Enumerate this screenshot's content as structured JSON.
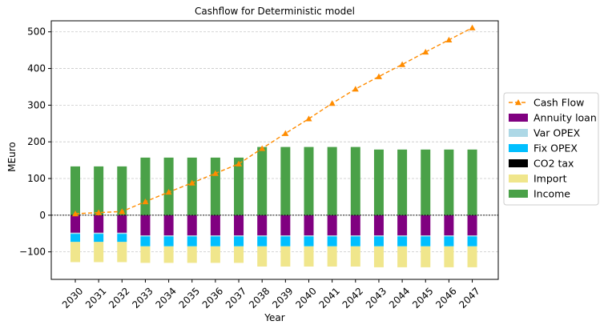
{
  "chart_data": {
    "type": "bar",
    "title": "Cashflow for Deterministic model",
    "xlabel": "Year",
    "ylabel": "MEuro",
    "categories": [
      "2030",
      "2031",
      "2032",
      "2033",
      "2034",
      "2035",
      "2036",
      "2037",
      "2038",
      "2039",
      "2040",
      "2041",
      "2042",
      "2043",
      "2044",
      "2045",
      "2046",
      "2047"
    ],
    "ylim": [
      -175,
      530
    ],
    "yticks": [
      -100,
      0,
      100,
      200,
      300,
      400,
      500
    ],
    "grid": "y-dashed",
    "legend_position": "right",
    "stacked_negative": true,
    "series": [
      {
        "name": "Annuity loan",
        "kind": "bar",
        "color": "#800080",
        "values": [
          -48,
          -48,
          -48,
          -55,
          -55,
          -55,
          -55,
          -55,
          -55,
          -55,
          -55,
          -55,
          -55,
          -55,
          -55,
          -55,
          -55,
          -55
        ]
      },
      {
        "name": "Var OPEX",
        "kind": "bar",
        "color": "#add8e6",
        "values": [
          -3,
          -3,
          -3,
          -3,
          -3,
          -3,
          -3,
          -3,
          -3,
          -3,
          -3,
          -3,
          -3,
          -3,
          -3,
          -3,
          -3,
          -3
        ]
      },
      {
        "name": "Fix OPEX",
        "kind": "bar",
        "color": "#00bfff",
        "values": [
          -22,
          -22,
          -22,
          -27,
          -27,
          -27,
          -27,
          -27,
          -27,
          -27,
          -27,
          -27,
          -27,
          -27,
          -27,
          -27,
          -27,
          -27
        ]
      },
      {
        "name": "CO2 tax",
        "kind": "bar",
        "color": "#000000",
        "values": [
          0,
          0,
          0,
          0,
          0,
          0,
          0,
          0,
          0,
          0,
          0,
          0,
          0,
          0,
          0,
          0,
          0,
          0
        ]
      },
      {
        "name": "Import",
        "kind": "bar",
        "color": "#f0e68c",
        "values": [
          -55,
          -55,
          -55,
          -45,
          -45,
          -45,
          -45,
          -45,
          -55,
          -55,
          -55,
          -55,
          -55,
          -57,
          -57,
          -57,
          -57,
          -57
        ]
      },
      {
        "name": "Income",
        "kind": "bar",
        "color": "#4aa148",
        "values": [
          133,
          133,
          133,
          157,
          157,
          157,
          157,
          157,
          186,
          186,
          186,
          186,
          186,
          179,
          179,
          179,
          179,
          179
        ]
      },
      {
        "name": "Cash Flow",
        "kind": "line",
        "color": "#ff8c00",
        "values": [
          4,
          7,
          10,
          37,
          63,
          88,
          114,
          140,
          182,
          223,
          263,
          305,
          344,
          378,
          411,
          445,
          478,
          511
        ]
      }
    ],
    "legend_order": [
      "Cash Flow",
      "Annuity loan",
      "Var OPEX",
      "Fix OPEX",
      "CO2 tax",
      "Import",
      "Income"
    ]
  }
}
